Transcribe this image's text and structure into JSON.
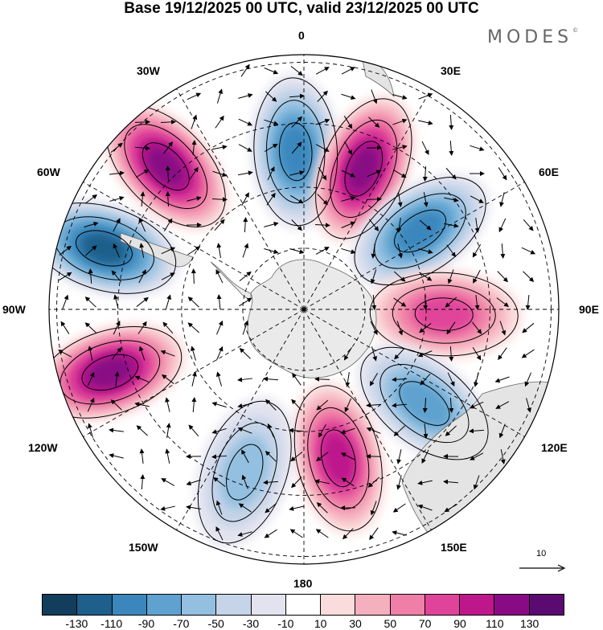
{
  "title": "Base 19/12/2025 00 UTC, valid 23/12/2025 00 UTC",
  "logo": {
    "text": "MODES",
    "mark": "©"
  },
  "longitude_labels": {
    "north": "0",
    "south": "180",
    "west": "90W",
    "east": "90E",
    "nw1": "30W",
    "nw2": "60W",
    "ne1": "30E",
    "ne2": "60E",
    "sw1": "120W",
    "sw2": "150W",
    "se1": "120E",
    "se2": "150E"
  },
  "vector_reference": {
    "label": "10",
    "icon": "arrow-right-icon"
  },
  "colorbar": {
    "colors": [
      "#123d5c",
      "#1f5f8b",
      "#3b87bd",
      "#5fa2cf",
      "#93bfe0",
      "#c5d4e8",
      "#e3e3ef",
      "#ffffff",
      "#fbdcdc",
      "#f5b0be",
      "#ef7fa6",
      "#e0449a",
      "#be178c",
      "#880a84",
      "#5b0a72"
    ],
    "ticks": [
      "-130",
      "-110",
      "-90",
      "-70",
      "-50",
      "-30",
      "-10",
      "10",
      "30",
      "50",
      "70",
      "90",
      "110",
      "130"
    ]
  },
  "anomalies": [
    {
      "name": "low-0",
      "lon": -3,
      "r": 0.62,
      "value": -90
    },
    {
      "name": "high-20e",
      "lon": 23,
      "r": 0.6,
      "value": 110
    },
    {
      "name": "low-55e",
      "lon": 56,
      "r": 0.55,
      "value": -90
    },
    {
      "name": "high-85e",
      "lon": 92,
      "r": 0.55,
      "value": 70
    },
    {
      "name": "low-125e",
      "lon": 128,
      "r": 0.6,
      "value": -70
    },
    {
      "name": "high-165e",
      "lon": 167,
      "r": 0.6,
      "value": 90
    },
    {
      "name": "low-150w",
      "lon": -160,
      "r": 0.68,
      "value": -50
    },
    {
      "name": "high-105w",
      "lon": -108,
      "r": 0.8,
      "value": 110
    },
    {
      "name": "low-75w",
      "lon": -73,
      "r": 0.82,
      "value": -110
    },
    {
      "name": "high-45w",
      "lon": -44,
      "r": 0.78,
      "value": 110
    }
  ]
}
